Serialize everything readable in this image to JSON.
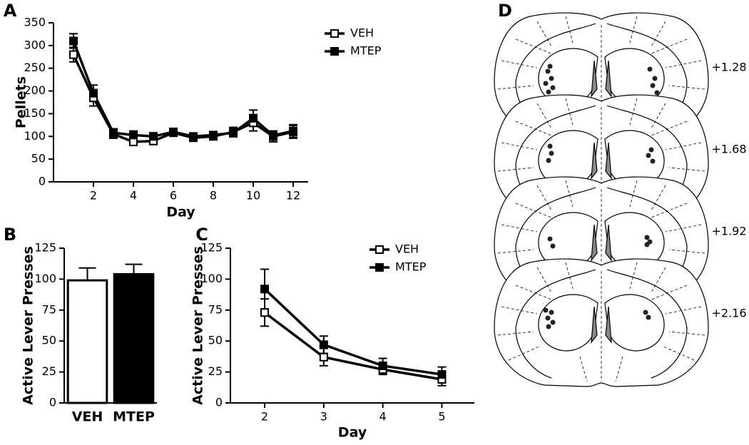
{
  "chart_data": [
    {
      "type": "line",
      "panel_label": "A",
      "y_label": "Pellets",
      "x_label": "Day",
      "x": [
        1,
        2,
        3,
        4,
        5,
        6,
        7,
        8,
        9,
        10,
        11,
        12
      ],
      "xlim": [
        0,
        12.75
      ],
      "xticks": [
        2,
        4,
        6,
        8,
        10,
        12
      ],
      "ylim": [
        0,
        350
      ],
      "yticks": [
        0,
        50,
        100,
        150,
        200,
        250,
        300,
        350
      ],
      "series": [
        {
          "name": "VEH",
          "color": "#000000",
          "marker_fill": "#ffffff",
          "values": [
            280,
            185,
            105,
            88,
            90,
            108,
            97,
            100,
            110,
            130,
            100,
            110
          ],
          "errors": [
            16,
            18,
            9,
            8,
            8,
            7,
            6,
            7,
            10,
            18,
            12,
            14
          ]
        },
        {
          "name": "MTEP",
          "color": "#000000",
          "marker_fill": "#000000",
          "values": [
            310,
            195,
            108,
            103,
            100,
            110,
            100,
            103,
            108,
            140,
            102,
            112
          ],
          "errors": [
            16,
            18,
            9,
            9,
            8,
            7,
            6,
            7,
            9,
            18,
            10,
            14
          ]
        }
      ]
    },
    {
      "type": "bar",
      "panel_label": "B",
      "y_label": "Active Lever  Presses",
      "categories": [
        "VEH",
        "MTEP"
      ],
      "values": [
        99,
        104
      ],
      "errors": [
        10,
        8
      ],
      "bar_colors": [
        "#ffffff",
        "#000000"
      ],
      "ylim": [
        0,
        125
      ],
      "yticks": [
        0,
        25,
        50,
        75,
        100,
        125
      ]
    },
    {
      "type": "line",
      "panel_label": "C",
      "y_label": "Active Lever  Presses",
      "x_label": "Day",
      "x": [
        2,
        3,
        4,
        5
      ],
      "xlim": [
        1.42,
        5.55
      ],
      "xticks": [
        2,
        3,
        4,
        5
      ],
      "ylim": [
        0,
        125
      ],
      "yticks": [
        0,
        25,
        50,
        75,
        100,
        125
      ],
      "series": [
        {
          "name": "VEH",
          "color": "#000000",
          "marker_fill": "#ffffff",
          "values": [
            73,
            37,
            27,
            19
          ],
          "errors": [
            11,
            7,
            4,
            5
          ]
        },
        {
          "name": "MTEP",
          "color": "#000000",
          "marker_fill": "#000000",
          "values": [
            92,
            47,
            30,
            23
          ],
          "errors": [
            16,
            7,
            6,
            6
          ]
        }
      ]
    }
  ],
  "atlas": {
    "panel_label": "D",
    "levels": [
      "+1.28",
      "+1.68",
      "+1.92",
      "+2.16"
    ]
  }
}
